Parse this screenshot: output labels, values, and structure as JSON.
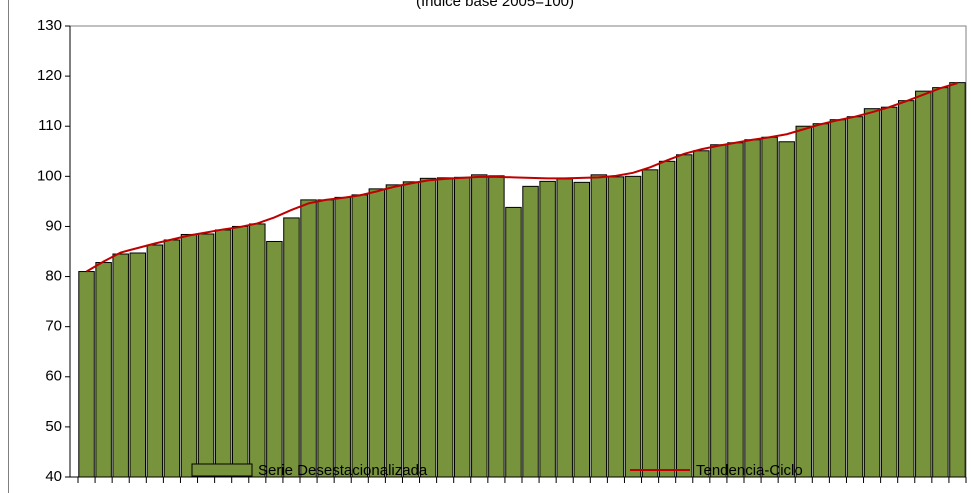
{
  "chart_data": {
    "type": "bar",
    "subtitle": "(Indice base 2005=100)",
    "categories": [
      null,
      null,
      null,
      null,
      null,
      null,
      null,
      null,
      null,
      null,
      null,
      null,
      null,
      null,
      null,
      null,
      null,
      null,
      null,
      null,
      null,
      null,
      null,
      null,
      null,
      null,
      null,
      null,
      null,
      null,
      null,
      null,
      null,
      null,
      null,
      null,
      null,
      null,
      null,
      null,
      null,
      null,
      null,
      null,
      null,
      null,
      null,
      null,
      null,
      null,
      null,
      null
    ],
    "series": [
      {
        "name": "Serie Desestacionalizada",
        "color": "#77933c",
        "values": [
          81,
          82.8,
          84.5,
          84.7,
          86.3,
          87.3,
          88.4,
          88.5,
          89.3,
          90,
          90.5,
          87,
          91.7,
          95.3,
          95.3,
          95.8,
          96.3,
          97.5,
          98.3,
          98.9,
          99.6,
          99.7,
          99.8,
          100.3,
          100.1,
          93.8,
          98,
          99,
          99.5,
          98.8,
          100.3,
          99.9,
          100,
          101.3,
          103,
          104.3,
          105.1,
          106.3,
          106.7,
          107.3,
          107.8,
          106.9,
          110,
          110.5,
          111.3,
          111.9,
          113.5,
          113.8,
          115.1,
          117,
          117.7,
          118.7
        ]
      },
      {
        "name": "Tendencia-Ciclo",
        "color": "#c00000",
        "type": "line",
        "values": [
          81,
          83,
          84.8,
          85.7,
          86.6,
          87.4,
          88.2,
          88.8,
          89.4,
          89.9,
          90.6,
          91.8,
          93.3,
          94.6,
          95.3,
          95.7,
          96.2,
          97,
          97.9,
          98.6,
          99.2,
          99.5,
          99.7,
          99.9,
          99.9,
          99.8,
          99.7,
          99.6,
          99.6,
          99.7,
          99.8,
          100.1,
          100.7,
          101.8,
          103.2,
          104.5,
          105.4,
          106.1,
          106.7,
          107.3,
          107.8,
          108.4,
          109.4,
          110.4,
          111.2,
          111.9,
          112.8,
          113.8,
          115,
          116.3,
          117.6,
          118.6
        ]
      }
    ],
    "ylim": [
      40,
      130
    ],
    "yticks": [
      40,
      50,
      60,
      70,
      80,
      90,
      100,
      110,
      120,
      130
    ],
    "legend": "bottom"
  }
}
